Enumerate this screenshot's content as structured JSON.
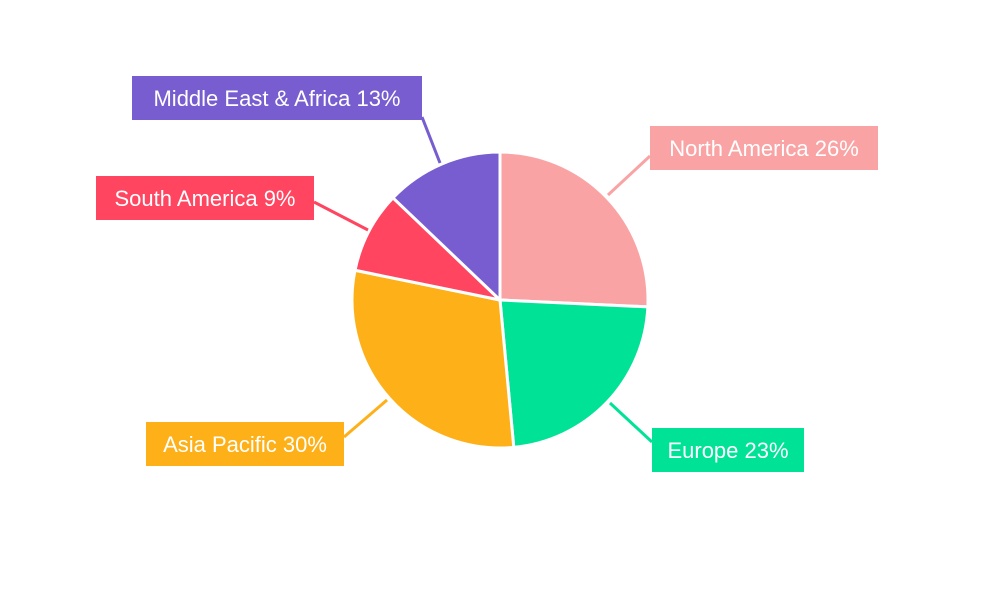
{
  "chart_data": {
    "type": "pie",
    "title": "",
    "slices": [
      {
        "label": "North America",
        "value": 26,
        "display": "North America 26%",
        "color": "#F9A3A4"
      },
      {
        "label": "Europe",
        "value": 23,
        "display": "Europe 23%",
        "color": "#00E396"
      },
      {
        "label": "Asia Pacific",
        "value": 30,
        "display": "Asia Pacific 30%",
        "color": "#FEB019"
      },
      {
        "label": "South America",
        "value": 9,
        "display": "South America 9%",
        "color": "#FF4560"
      },
      {
        "label": "Middle East & Africa",
        "value": 13,
        "display": "Middle East & Africa 13%",
        "color": "#775DD0"
      }
    ],
    "start_angle": "12 o'clock",
    "direction": "clockwise",
    "legend": "none"
  }
}
